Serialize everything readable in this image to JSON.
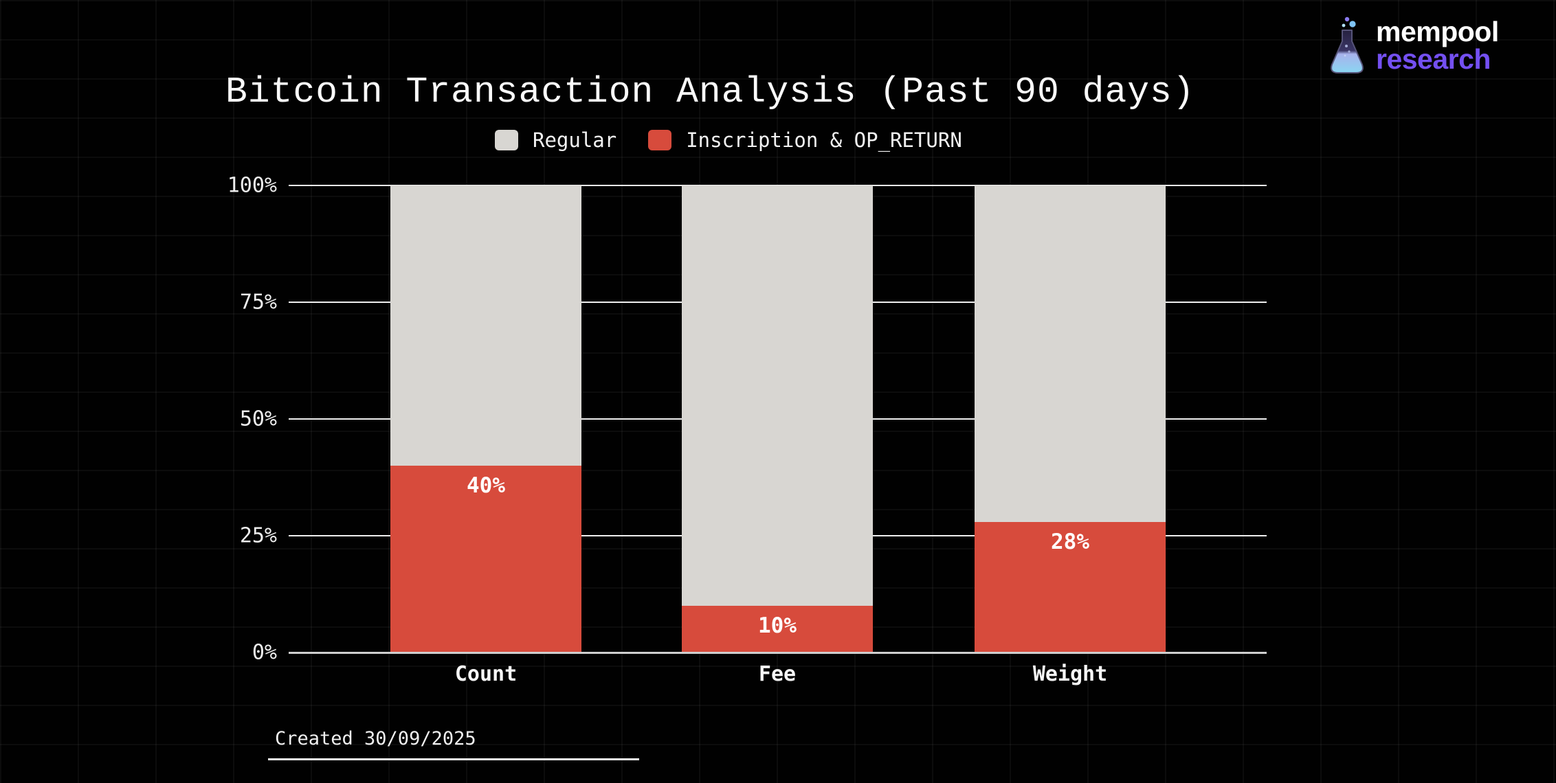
{
  "header": {
    "title": "Bitcoin Transaction Analysis (Past 90 days)"
  },
  "legend": [
    {
      "label": "Regular",
      "color": "#d8d6d2"
    },
    {
      "label": "Inscription & OP_RETURN",
      "color": "#d74b3c"
    }
  ],
  "footer": {
    "created": "Created 30/09/2025"
  },
  "logo": {
    "line1": "mempool",
    "line2": "research",
    "accent": "#7450f2",
    "icon": "flask-icon"
  },
  "chart_data": {
    "type": "bar",
    "stacked": true,
    "title": "Bitcoin Transaction Analysis (Past 90 days)",
    "categories": [
      "Count",
      "Fee",
      "Weight"
    ],
    "series": [
      {
        "name": "Inscription & OP_RETURN",
        "color": "#d74b3c",
        "values": [
          40,
          10,
          28
        ]
      },
      {
        "name": "Regular",
        "color": "#d8d6d2",
        "values": [
          60,
          90,
          72
        ]
      }
    ],
    "bar_labels": [
      "40%",
      "10%",
      "28%"
    ],
    "y_ticks": [
      "100%",
      "75%",
      "50%",
      "25%",
      "0%"
    ],
    "ylim": [
      0,
      100
    ],
    "xlabel": "",
    "ylabel": "",
    "legend_position": "top",
    "grid": "horizontal",
    "background": "#000000"
  }
}
